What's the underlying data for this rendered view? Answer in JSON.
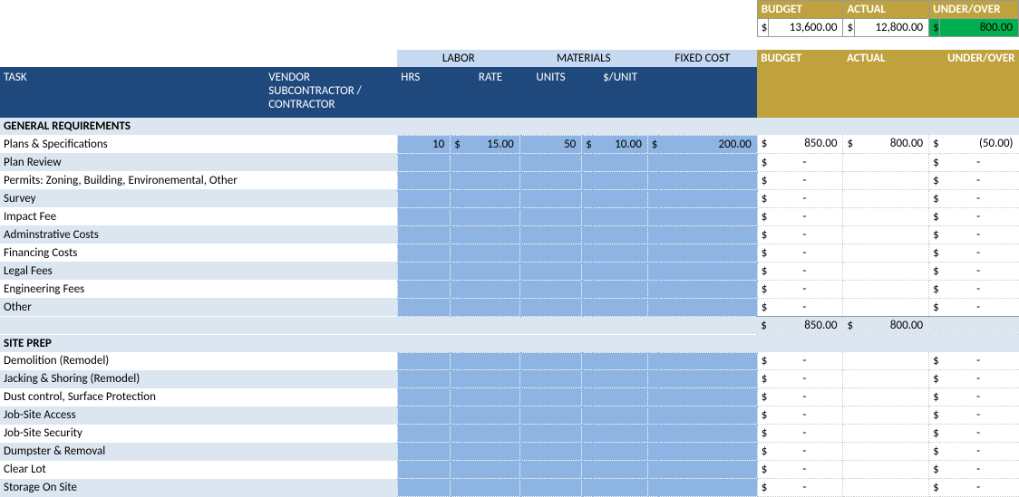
{
  "colors": {
    "gold": "#bfa23e",
    "green": "#00b050",
    "darkblue": "#1f497d",
    "lightblue": "#c5d9f1",
    "paleblue": "#dce6f1",
    "midblue": "#8db4e2",
    "white": "#ffffff"
  },
  "topSummary": {
    "headers": {
      "budget": "BUDGET",
      "actual": "ACTUAL",
      "underover": "UNDER/OVER"
    },
    "values": {
      "budget": "13,600.00",
      "actual": "12,800.00",
      "underover": "800.00"
    }
  },
  "groupHeaders": {
    "labor": "LABOR",
    "materials": "MATERIALS",
    "fixed": "FIXED COST"
  },
  "columnHeaders": {
    "task": "TASK",
    "vendor": "VENDOR SUBCONTRACTOR / CONTRACTOR",
    "hrs": "HRS",
    "rate": "RATE",
    "units": "UNITS",
    "perunit": "$/UNIT",
    "budget": "BUDGET",
    "actual": "ACTUAL",
    "underover": "UNDER/OVER"
  },
  "sections": [
    {
      "title": "GENERAL REQUIREMENTS",
      "rows": [
        {
          "task": "Plans & Specifications",
          "hrs": "10",
          "rate": "15.00",
          "units": "50",
          "perunit": "10.00",
          "fixed": "200.00",
          "budget": "850.00",
          "actual": "800.00",
          "underover": "(50.00)"
        },
        {
          "task": "Plan Review",
          "budget": "-",
          "underover": "-"
        },
        {
          "task": "Permits: Zoning, Building, Environemental, Other",
          "budget": "-",
          "underover": "-"
        },
        {
          "task": "Survey",
          "budget": "-",
          "underover": "-"
        },
        {
          "task": "Impact Fee",
          "budget": "-",
          "underover": "-"
        },
        {
          "task": "Adminstrative Costs",
          "budget": "-",
          "underover": "-"
        },
        {
          "task": "Financing Costs",
          "budget": "-",
          "underover": "-"
        },
        {
          "task": "Legal Fees",
          "budget": "-",
          "underover": "-"
        },
        {
          "task": "Engineering Fees",
          "budget": "-",
          "underover": "-"
        },
        {
          "task": "Other",
          "budget": "-",
          "underover": "-"
        }
      ],
      "totals": {
        "budget": "850.00",
        "actual": "800.00"
      }
    },
    {
      "title": "SITE PREP",
      "rows": [
        {
          "task": "Demolition (Remodel)",
          "budget": "-",
          "underover": "-"
        },
        {
          "task": "Jacking & Shoring (Remodel)",
          "budget": "-",
          "underover": "-"
        },
        {
          "task": "Dust control, Surface Protection",
          "budget": "-",
          "underover": "-"
        },
        {
          "task": "Job-Site Access",
          "budget": "-",
          "underover": "-"
        },
        {
          "task": "Job-Site Security",
          "budget": "-",
          "underover": "-"
        },
        {
          "task": "Dumpster & Removal",
          "budget": "-",
          "underover": "-"
        },
        {
          "task": "Clear Lot",
          "budget": "-",
          "underover": "-"
        },
        {
          "task": "Storage On Site",
          "budget": "-",
          "underover": "-"
        }
      ]
    }
  ]
}
